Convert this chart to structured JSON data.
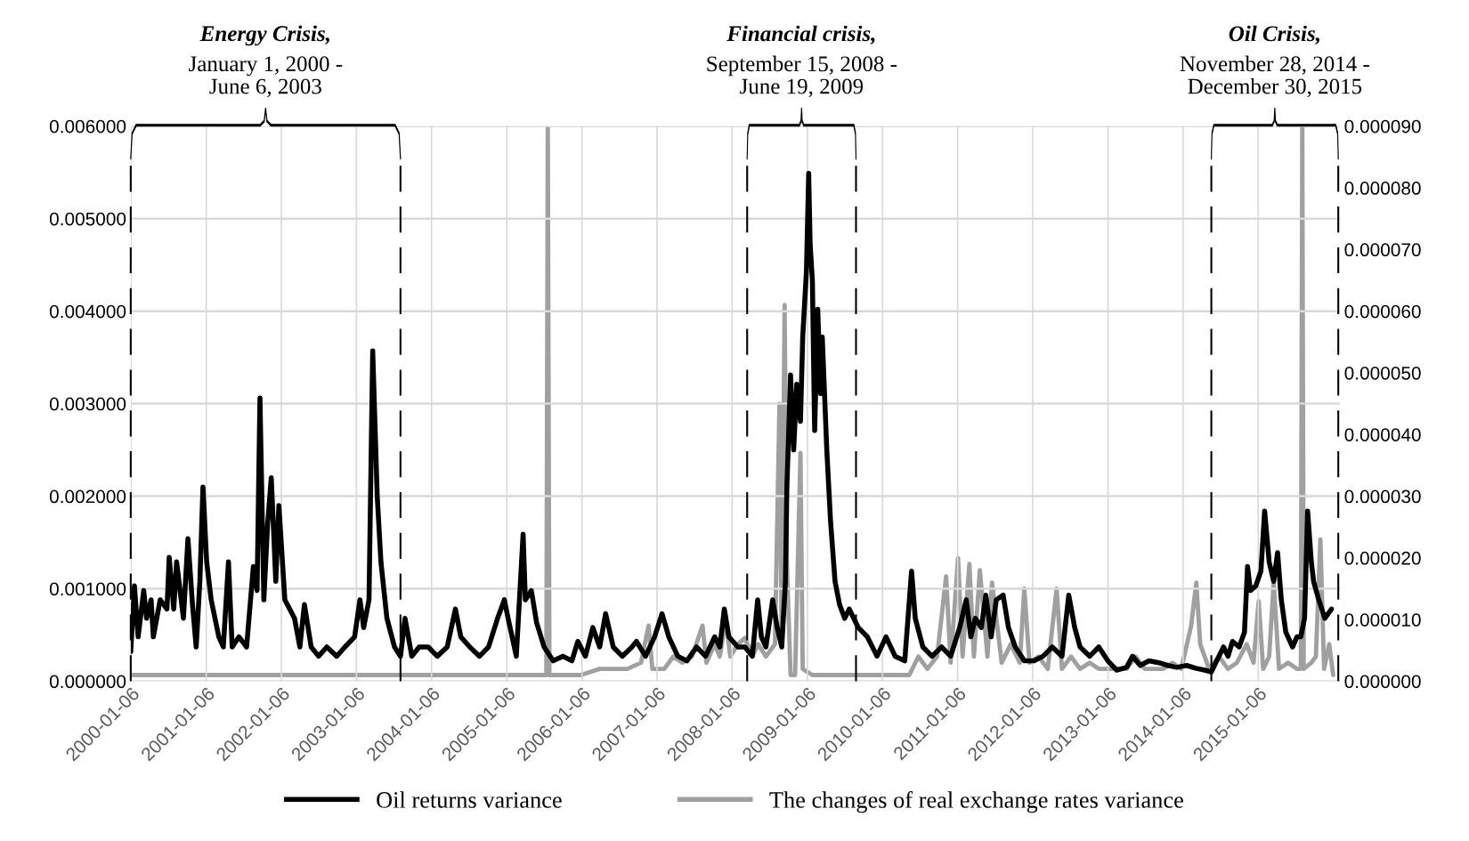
{
  "chart_data": {
    "type": "line",
    "xlim": [
      "2000-01-05",
      "2016-02-06"
    ],
    "xticks": [
      "2000-01-06",
      "2001-01-06",
      "2002-01-06",
      "2003-01-06",
      "2004-01-06",
      "2005-01-06",
      "2006-01-06",
      "2007-01-06",
      "2008-01-06",
      "2009-01-06",
      "2010-01-06",
      "2011-01-06",
      "2012-01-06",
      "2013-01-06",
      "2014-01-06",
      "2015-01-06"
    ],
    "ylim": [
      0,
      0.006
    ],
    "yticks": [
      {
        "value": 0,
        "label": "0.000000"
      },
      {
        "value": 0.001,
        "label": "0.001000"
      },
      {
        "value": 0.002,
        "label": "0.002000"
      },
      {
        "value": 0.003,
        "label": "0.003000"
      },
      {
        "value": 0.004,
        "label": "0.004000"
      },
      {
        "value": 0.005,
        "label": "0.005000"
      },
      {
        "value": 0.006,
        "label": "0.006000"
      }
    ],
    "y2lim": [
      0,
      9e-05
    ],
    "y2ticks": [
      {
        "value": 0,
        "label": "0.000000"
      },
      {
        "value": 1e-05,
        "label": "0.000010"
      },
      {
        "value": 2e-05,
        "label": "0.000020"
      },
      {
        "value": 3e-05,
        "label": "0.000030"
      },
      {
        "value": 4e-05,
        "label": "0.000040"
      },
      {
        "value": 5e-05,
        "label": "0.000050"
      },
      {
        "value": 6e-05,
        "label": "0.000060"
      },
      {
        "value": 7e-05,
        "label": "0.000070"
      },
      {
        "value": 8e-05,
        "label": "0.000080"
      },
      {
        "value": 9e-05,
        "label": "0.000090"
      }
    ],
    "grid": true,
    "legend": "bottom",
    "series": [
      {
        "name": "Oil returns variance",
        "color": "#000000",
        "x": [
          "2000-01-05",
          "2000-01-23",
          "2000-02-10",
          "2000-03-08",
          "2000-03-22",
          "2000-04-13",
          "2000-04-24",
          "2000-05-27",
          "2000-06-29",
          "2000-07-10",
          "2000-08-01",
          "2000-08-15",
          "2000-09-17",
          "2000-10-09",
          "2000-10-31",
          "2000-11-18",
          "2000-12-06",
          "2000-12-21",
          "2001-01-08",
          "2001-01-30",
          "2001-03-08",
          "2001-03-30",
          "2001-04-24",
          "2001-05-12",
          "2001-06-14",
          "2001-07-21",
          "2001-08-23",
          "2001-09-10",
          "2001-09-24",
          "2001-10-13",
          "2001-10-31",
          "2001-11-18",
          "2001-12-10",
          "2001-12-25",
          "2002-01-23",
          "2002-03-11",
          "2002-04-06",
          "2002-04-28",
          "2002-05-31",
          "2002-07-06",
          "2002-08-15",
          "2002-10-02",
          "2002-11-11",
          "2002-12-28",
          "2003-01-23",
          "2003-02-10",
          "2003-03-08",
          "2003-03-26",
          "2003-04-17",
          "2003-05-05",
          "2003-06-03",
          "2003-07-10",
          "2003-08-08",
          "2003-08-30",
          "2003-10-02",
          "2003-11-07",
          "2003-12-21",
          "2004-02-03",
          "2004-03-22",
          "2004-05-01",
          "2004-05-27",
          "2004-07-10",
          "2004-08-26",
          "2004-10-09",
          "2004-11-22",
          "2004-12-25",
          "2005-01-12",
          "2005-02-21",
          "2005-03-26",
          "2005-04-06",
          "2005-05-05",
          "2005-05-31",
          "2005-07-06",
          "2005-08-19",
          "2005-10-05",
          "2005-11-18",
          "2005-12-17",
          "2006-01-23",
          "2006-02-28",
          "2006-04-02",
          "2006-05-01",
          "2006-06-07",
          "2006-07-21",
          "2006-09-06",
          "2006-09-28",
          "2006-11-11",
          "2006-12-25",
          "2007-01-30",
          "2007-03-04",
          "2007-04-17",
          "2007-05-31",
          "2007-07-17",
          "2007-08-30",
          "2007-10-13",
          "2007-11-07",
          "2007-11-29",
          "2007-12-21",
          "2008-02-03",
          "2008-03-08",
          "2008-04-13",
          "2008-05-09",
          "2008-05-27",
          "2008-06-18",
          "2008-07-21",
          "2008-08-12",
          "2008-09-03",
          "2008-09-21",
          "2008-09-28",
          "2008-10-16",
          "2008-10-31",
          "2008-11-15",
          "2008-12-03",
          "2008-12-14",
          "2009-01-01",
          "2009-01-12",
          "2009-01-19",
          "2009-01-30",
          "2009-02-10",
          "2009-02-25",
          "2009-03-11",
          "2009-03-19",
          "2009-04-10",
          "2009-04-28",
          "2009-05-20",
          "2009-06-11",
          "2009-07-06",
          "2009-07-28",
          "2009-08-19",
          "2009-09-10",
          "2009-10-24",
          "2009-12-10",
          "2010-01-23",
          "2010-03-08",
          "2010-04-24",
          "2010-05-27",
          "2010-06-14",
          "2010-07-21",
          "2010-09-03",
          "2010-10-20",
          "2010-12-03",
          "2011-01-16",
          "2011-02-17",
          "2011-03-11",
          "2011-04-02",
          "2011-05-01",
          "2011-05-23",
          "2011-06-18",
          "2011-07-13",
          "2011-08-15",
          "2011-09-10",
          "2011-10-13",
          "2011-11-26",
          "2012-01-12",
          "2012-02-25",
          "2012-04-10",
          "2012-05-27",
          "2012-06-29",
          "2012-07-28",
          "2012-08-23",
          "2012-10-09",
          "2012-11-22",
          "2013-01-05",
          "2013-02-17",
          "2013-04-06",
          "2013-05-05",
          "2013-06-11",
          "2013-07-24",
          "2013-09-10",
          "2013-10-24",
          "2013-12-06",
          "2014-01-23",
          "2014-03-08",
          "2014-04-21",
          "2014-05-23",
          "2014-06-29",
          "2014-07-21",
          "2014-08-12",
          "2014-09-03",
          "2014-10-05",
          "2014-10-31",
          "2014-11-15",
          "2014-11-29",
          "2014-12-25",
          "2015-01-19",
          "2015-02-06",
          "2015-02-28",
          "2015-03-22",
          "2015-04-10",
          "2015-04-28",
          "2015-05-20",
          "2015-06-22",
          "2015-07-13",
          "2015-08-01",
          "2015-08-19",
          "2015-09-03",
          "2015-09-21",
          "2015-10-02",
          "2015-10-27",
          "2015-11-26",
          "2015-12-28"
        ],
        "values": [
          0.00032,
          0.00103,
          0.00048,
          0.00098,
          0.00068,
          0.00088,
          0.00048,
          0.00088,
          0.00078,
          0.00134,
          0.00078,
          0.00129,
          0.00068,
          0.00154,
          0.00083,
          0.00037,
          0.00108,
          0.0021,
          0.00129,
          0.00088,
          0.00048,
          0.00037,
          0.00129,
          0.00037,
          0.00048,
          0.00037,
          0.00124,
          0.00098,
          0.00306,
          0.00088,
          0.00169,
          0.0022,
          0.00108,
          0.0019,
          0.00088,
          0.00068,
          0.00037,
          0.00083,
          0.00037,
          0.00027,
          0.00037,
          0.00027,
          0.00037,
          0.00048,
          0.00088,
          0.00058,
          0.00088,
          0.00357,
          0.002,
          0.00129,
          0.00068,
          0.00037,
          0.00027,
          0.00068,
          0.00027,
          0.00037,
          0.00037,
          0.00027,
          0.00037,
          0.00078,
          0.00048,
          0.00037,
          0.00027,
          0.00037,
          0.00068,
          0.00088,
          0.00068,
          0.00027,
          0.00159,
          0.00088,
          0.00098,
          0.00063,
          0.00037,
          0.00022,
          0.00027,
          0.00022,
          0.00043,
          0.00027,
          0.00058,
          0.00037,
          0.00073,
          0.00037,
          0.00027,
          0.00037,
          0.00043,
          0.00027,
          0.00048,
          0.00073,
          0.00048,
          0.00027,
          0.00022,
          0.00037,
          0.00027,
          0.00048,
          0.00037,
          0.00078,
          0.00048,
          0.00037,
          0.00037,
          0.00027,
          0.00088,
          0.00048,
          0.00037,
          0.00088,
          0.00058,
          0.00037,
          0.00108,
          0.0021,
          0.00331,
          0.0025,
          0.00321,
          0.00281,
          0.00372,
          0.00443,
          0.00549,
          0.00473,
          0.00433,
          0.00271,
          0.00402,
          0.00311,
          0.00372,
          0.0025,
          0.00174,
          0.00108,
          0.00083,
          0.00068,
          0.00078,
          0.00068,
          0.00058,
          0.00048,
          0.00027,
          0.00048,
          0.00027,
          0.00022,
          0.00119,
          0.00068,
          0.00037,
          0.00027,
          0.00037,
          0.00027,
          0.00058,
          0.00088,
          0.00048,
          0.00068,
          0.00058,
          0.00093,
          0.00048,
          0.00088,
          0.00093,
          0.00058,
          0.00037,
          0.00022,
          0.00022,
          0.00027,
          0.00037,
          0.00027,
          0.00093,
          0.00058,
          0.00037,
          0.00027,
          0.00037,
          0.00022,
          0.00012,
          0.00015,
          0.00027,
          0.00017,
          0.00022,
          0.0002,
          0.00017,
          0.00015,
          0.00017,
          0.00014,
          0.00012,
          0.0001,
          0.00027,
          0.00037,
          0.00027,
          0.00043,
          0.00037,
          0.00053,
          0.00124,
          0.00098,
          0.00103,
          0.00119,
          0.00184,
          0.00129,
          0.00108,
          0.00139,
          0.00088,
          0.00053,
          0.00037,
          0.00048,
          0.00048,
          0.00068,
          0.00184,
          0.00129,
          0.00108,
          0.00088,
          0.00068,
          0.00078
        ]
      },
      {
        "name": "The changes of real exchange rates variance",
        "color": "#a0a0a0",
        "axis": "y2",
        "x": [
          "2000-01-05",
          "2000-10-31",
          "2001-10-27",
          "2002-01-23",
          "2003-04-17",
          "2004-07-10",
          "2005-07-06",
          "2005-07-17",
          "2005-07-24",
          "2005-08-01",
          "2005-10-05",
          "2006-01-01",
          "2006-04-02",
          "2006-06-07",
          "2006-08-15",
          "2006-10-20",
          "2006-11-26",
          "2006-12-14",
          "2007-02-10",
          "2007-03-26",
          "2007-05-09",
          "2007-06-25",
          "2007-08-15",
          "2007-09-03",
          "2007-10-13",
          "2007-11-07",
          "2007-12-06",
          "2007-12-28",
          "2008-02-03",
          "2008-03-08",
          "2008-04-13",
          "2008-05-12",
          "2008-06-18",
          "2008-08-01",
          "2008-08-23",
          "2008-09-03",
          "2008-09-17",
          "2008-09-28",
          "2008-10-16",
          "2008-11-07",
          "2008-12-03",
          "2008-12-14",
          "2009-01-30",
          "2009-03-15",
          "2009-06-11",
          "2010-01-23",
          "2010-05-16",
          "2010-06-29",
          "2010-08-12",
          "2010-09-28",
          "2010-11-11",
          "2010-12-03",
          "2011-01-08",
          "2011-01-30",
          "2011-03-04",
          "2011-03-26",
          "2011-04-24",
          "2011-05-31",
          "2011-06-22",
          "2011-08-08",
          "2011-09-21",
          "2011-11-04",
          "2011-11-26",
          "2011-12-21",
          "2012-02-03",
          "2012-03-19",
          "2012-05-01",
          "2012-05-27",
          "2012-07-10",
          "2012-08-23",
          "2012-10-09",
          "2012-11-22",
          "2013-01-05",
          "2013-02-17",
          "2013-04-06",
          "2013-05-20",
          "2013-07-03",
          "2013-08-19",
          "2013-10-02",
          "2013-11-15",
          "2013-12-28",
          "2014-02-14",
          "2014-03-11",
          "2014-03-30",
          "2014-05-12",
          "2014-06-29",
          "2014-08-12",
          "2014-09-24",
          "2014-11-11",
          "2014-12-14",
          "2015-01-08",
          "2015-01-30",
          "2015-02-28",
          "2015-03-22",
          "2015-04-17",
          "2015-05-31",
          "2015-07-13",
          "2015-08-01",
          "2015-08-08",
          "2015-08-15",
          "2015-09-21",
          "2015-10-13",
          "2015-11-04",
          "2015-11-22",
          "2015-12-17",
          "2016-01-05"
        ],
        "values": [
          1e-06,
          1e-06,
          1e-06,
          1e-06,
          1e-06,
          1e-06,
          1e-06,
          1e-06,
          9e-05,
          1e-06,
          1e-06,
          1e-06,
          2e-06,
          2e-06,
          2e-06,
          3e-06,
          9e-06,
          2e-06,
          2e-06,
          4e-06,
          3e-06,
          4e-06,
          9e-06,
          3e-06,
          6e-06,
          4e-06,
          1e-05,
          4e-06,
          6e-06,
          7e-06,
          4e-06,
          6e-06,
          4e-06,
          6e-06,
          4.5e-05,
          6e-06,
          6.1e-05,
          1.9e-05,
          1e-06,
          1e-06,
          3.7e-05,
          2e-06,
          1e-06,
          1e-06,
          1e-06,
          1e-06,
          1e-06,
          4e-06,
          2e-06,
          4e-06,
          1.7e-05,
          3e-06,
          2e-05,
          4e-06,
          1.9e-05,
          4e-06,
          1.8e-05,
          4e-06,
          1.6e-05,
          3e-06,
          6e-06,
          3e-06,
          1.5e-05,
          3e-06,
          4e-06,
          2e-06,
          1.5e-05,
          2e-06,
          4e-06,
          2e-06,
          3e-06,
          2e-06,
          2e-06,
          2e-06,
          2e-06,
          4e-06,
          2e-06,
          2e-06,
          2e-06,
          3e-06,
          2e-06,
          9e-06,
          1.6e-05,
          6e-06,
          2e-06,
          4e-06,
          2e-06,
          3e-06,
          6e-06,
          3e-06,
          1.3e-05,
          2e-06,
          4e-06,
          1.6e-05,
          2e-06,
          3e-06,
          2e-06,
          2e-06,
          9e-05,
          2e-06,
          3e-06,
          4e-06,
          2.3e-05,
          2e-06,
          6e-06,
          1e-06
        ]
      }
    ],
    "ref_lines": [
      {
        "axis": "x",
        "value": "2000-01-05",
        "color": "#000000",
        "line_style": "dashed"
      },
      {
        "axis": "x",
        "value": "2003-08-08",
        "color": "#000000",
        "line_style": "dashed"
      },
      {
        "axis": "x",
        "value": "2008-03-19",
        "color": "#000000",
        "line_style": "dashed"
      },
      {
        "axis": "x",
        "value": "2009-08-30",
        "color": "#000000",
        "line_style": "dashed"
      },
      {
        "axis": "x",
        "value": "2014-05-23",
        "color": "#000000",
        "line_style": "dashed"
      },
      {
        "axis": "x",
        "value": "2016-01-30",
        "color": "#000000",
        "line_style": "dashed"
      }
    ],
    "annotations": [
      "Energy Crisis,\nJanuary 1, 2000 -\nJune 6, 2003",
      "Financial crisis,\nSeptember 15, 2008 -\nJune 19, 2009",
      "Oil Crisis,\nNovember 28, 2014 -\nDecember 30, 2015"
    ]
  }
}
